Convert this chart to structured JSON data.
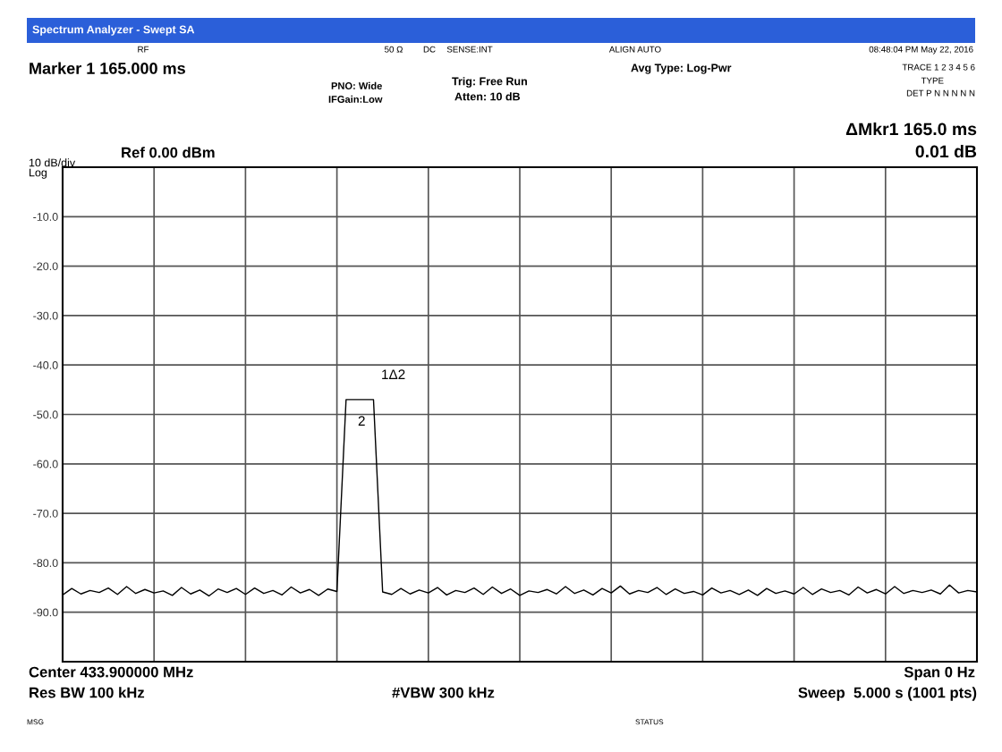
{
  "chart_data": {
    "type": "line",
    "categories": [
      null,
      null,
      null,
      null,
      null,
      null,
      null,
      null,
      null,
      null,
      null,
      null,
      null,
      null,
      null,
      null,
      null,
      null,
      null,
      null,
      null,
      null,
      null,
      null,
      null,
      null,
      null,
      null,
      null,
      null,
      null,
      null,
      null,
      null,
      null,
      null,
      null,
      null,
      null,
      null,
      null,
      null,
      null,
      null,
      null,
      null,
      null,
      null,
      null,
      null,
      null,
      null,
      null,
      null,
      null,
      null,
      null,
      null,
      null,
      null,
      null,
      null,
      null,
      null,
      null,
      null,
      null,
      null,
      null,
      null,
      null,
      null,
      null,
      null,
      null,
      null,
      null,
      null,
      null,
      null,
      null,
      null,
      null,
      null,
      null,
      null,
      null,
      null,
      null,
      null,
      null,
      null,
      null,
      null,
      null,
      null,
      null,
      null,
      null,
      null,
      null
    ],
    "series": [
      {
        "color": "#000000",
        "values": [
          -86.5,
          -85.2,
          -86.3,
          -85.6,
          -86.0,
          -85.1,
          -86.4,
          -84.8,
          -86.2,
          -85.4,
          -86.1,
          -85.7,
          -86.6,
          -85.0,
          -86.3,
          -85.5,
          -86.7,
          -85.3,
          -86.0,
          -85.2,
          -86.4,
          -85.1,
          -86.2,
          -85.6,
          -86.5,
          -84.9,
          -86.1,
          -85.4,
          -86.6,
          -85.3,
          -85.8,
          -47.0,
          -47.0,
          -47.0,
          -47.0,
          -85.9,
          -86.4,
          -85.2,
          -86.3,
          -85.5,
          -86.1,
          -85.0,
          -86.5,
          -85.6,
          -86.0,
          -85.1,
          -86.4,
          -84.9,
          -86.2,
          -85.3,
          -86.6,
          -85.7,
          -86.0,
          -85.4,
          -86.3,
          -84.8,
          -86.2,
          -85.5,
          -86.5,
          -85.2,
          -86.1,
          -84.7,
          -86.3,
          -85.6,
          -86.0,
          -85.0,
          -86.4,
          -85.3,
          -86.2,
          -85.8,
          -86.5,
          -85.1,
          -86.1,
          -85.6,
          -86.4,
          -85.5,
          -86.6,
          -85.2,
          -86.2,
          -85.7,
          -86.3,
          -85.0,
          -86.4,
          -85.3,
          -86.0,
          -85.6,
          -86.5,
          -84.9,
          -86.1,
          -85.4,
          -86.3,
          -84.8,
          -86.2,
          -85.6,
          -86.0,
          -85.5,
          -86.3,
          -84.5,
          -86.1,
          -85.6,
          -85.9
        ]
      }
    ],
    "ylim": [
      -100,
      0
    ],
    "yticks": [
      {
        "value": 0,
        "label": null
      },
      {
        "value": -10,
        "label": "-10.0"
      },
      {
        "value": -20,
        "label": "-20.0"
      },
      {
        "value": -30,
        "label": "-30.0"
      },
      {
        "value": -40,
        "label": "-40.0"
      },
      {
        "value": -50,
        "label": "-50.0"
      },
      {
        "value": -60,
        "label": "-60.0"
      },
      {
        "value": -70,
        "label": "-70.0"
      },
      {
        "value": -80,
        "label": "-80.0"
      },
      {
        "value": -90,
        "label": "-90.0"
      },
      {
        "value": -100,
        "label": null
      }
    ],
    "grid": true,
    "tick_labels": "y",
    "marker": "none",
    "line_style": "solid",
    "title": "Spectrum Analyzer - Swept SA",
    "annotations": [
      "RF",
      "50 Ω",
      "DC",
      "SENSE:INT",
      "ALIGN AUTO",
      "08:48:04 PM May 22, 2016",
      "Marker 1 165.000 ms",
      "PNO: Wide",
      "IFGain:Low",
      "Trig: Free Run",
      "Atten: 10 dB",
      "Avg Type: Log-Pwr",
      "TRACE 1 2 3 4 5 6",
      "TYPE",
      "DET P N N N N N",
      "ΔMkr1 165.0 ms",
      "0.01 dB",
      "10 dB/div",
      "Ref 0.00 dBm",
      "Log",
      "Center 433.900000 MHz",
      "Res BW 100 kHz",
      "#VBW 300 kHz",
      "Span 0 Hz",
      "Sweep  5.000 s (1001 pts)",
      "MSG",
      "STATUS",
      "1Δ2",
      "2"
    ]
  }
}
